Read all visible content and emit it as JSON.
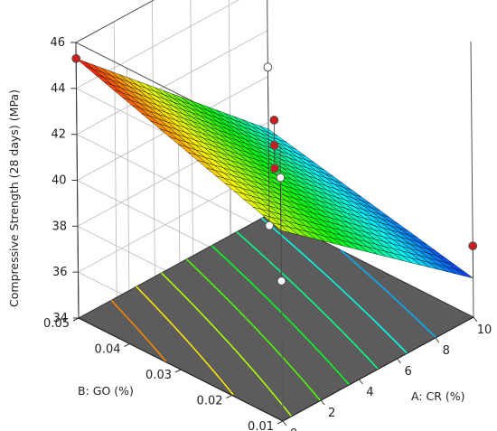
{
  "chart_data": {
    "type": "surface3d",
    "title": "",
    "zlabel": "Compressive Strength (28 days) (MPa)",
    "xlabel": "A: CR (%)",
    "ylabel": "B: GO (%)",
    "x_ticks": [
      "0",
      "2",
      "4",
      "6",
      "8",
      "10"
    ],
    "y_ticks": [
      "0.01",
      "0.02",
      "0.03",
      "0.04",
      "0.05"
    ],
    "z_ticks": [
      "34",
      "36",
      "38",
      "40",
      "42",
      "44",
      "46"
    ],
    "xlim": [
      0,
      10
    ],
    "ylim": [
      0.01,
      0.05
    ],
    "zlim": [
      34,
      46
    ],
    "surface_corners": [
      {
        "x": 0,
        "y": 0.05,
        "z": 45.3
      },
      {
        "x": 10,
        "y": 0.05,
        "z": 37.7
      },
      {
        "x": 0,
        "y": 0.01,
        "z": 42.3
      },
      {
        "x": 10,
        "y": 0.01,
        "z": 35.7
      }
    ],
    "design_points": [
      {
        "x": 0,
        "y": 0.05,
        "z": 45.3,
        "above_surface": true
      },
      {
        "x": 0,
        "y": 0.01,
        "z": 44.6,
        "above_surface": false
      },
      {
        "x": 10,
        "y": 0.05,
        "z": 40.4,
        "above_surface": false
      },
      {
        "x": 10,
        "y": 0.01,
        "z": 37.1,
        "above_surface": true
      },
      {
        "x": 5,
        "y": 0.03,
        "z": 42.6,
        "above_surface": true
      },
      {
        "x": 5,
        "y": 0.03,
        "z": 41.5,
        "above_surface": true
      },
      {
        "x": 5,
        "y": 0.03,
        "z": 40.5,
        "above_surface": true
      },
      {
        "x": 0,
        "y": 0.01,
        "z": 40.1,
        "above_surface": false
      },
      {
        "x": 10,
        "y": 0.05,
        "z": 33.5,
        "above_surface": false
      }
    ],
    "floor_contour_color": "#5c5c5c",
    "marker_color": "#c81e1e",
    "hollow_marker_color": "#ffffff",
    "grid": true
  }
}
